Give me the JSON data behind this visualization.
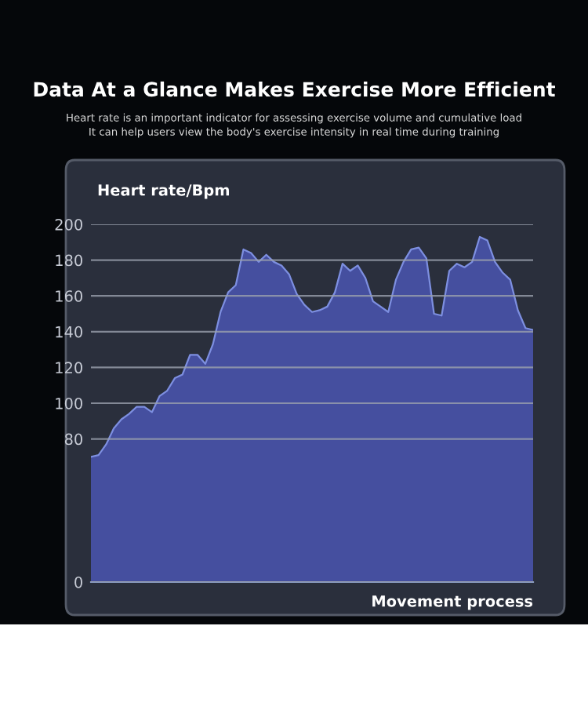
{
  "chart_data": {
    "type": "area",
    "title": "Data At a Glance Makes Exercise More Efficient",
    "subtitle": "Heart rate is an important indicator for assessing exercise volume and cumulative load\nIt can help users view the body's exercise intensity in real time during training",
    "ylabel": "Heart rate/Bpm",
    "xlabel": "Movement process",
    "categories": [
      null,
      null,
      null,
      null,
      null,
      null,
      null,
      null,
      null,
      null,
      null,
      null,
      null,
      null,
      null,
      null,
      null,
      null,
      null,
      null,
      null,
      null,
      null,
      null,
      null,
      null,
      null,
      null,
      null,
      null,
      null,
      null,
      null,
      null,
      null,
      null,
      null,
      null,
      null,
      null,
      null,
      null,
      null,
      null,
      null,
      null,
      null,
      null,
      null,
      null,
      null,
      null,
      null,
      null,
      null,
      null,
      null,
      null,
      null
    ],
    "series": [
      {
        "color": "#4a55b0",
        "values": [
          70,
          71,
          77,
          86,
          91,
          94,
          98,
          98,
          95,
          104,
          107,
          114,
          116,
          127,
          127,
          122,
          133,
          151,
          162,
          166,
          186,
          184,
          179,
          183,
          179,
          177,
          172,
          161,
          155,
          151,
          152,
          154,
          162,
          178,
          174,
          177,
          170,
          157,
          154,
          151,
          169,
          179,
          186,
          187,
          181,
          150,
          149,
          174,
          178,
          176,
          179,
          193,
          191,
          179,
          173,
          169,
          152,
          142,
          141
        ]
      }
    ],
    "ylim": [
      0,
      200
    ],
    "yticks": [
      0,
      80,
      100,
      120,
      140,
      160,
      180,
      200
    ],
    "tick_labels": "y",
    "grid": "y",
    "legend": false
  }
}
